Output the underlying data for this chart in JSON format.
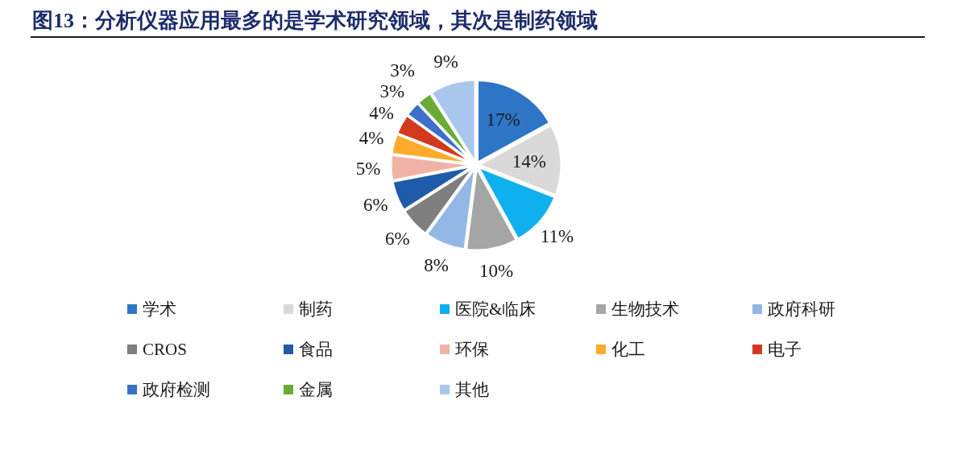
{
  "chart_data": {
    "type": "pie",
    "title": "图13：分析仪器应用最多的是学术研究领域，其次是制药领域",
    "categories": [
      "学术",
      "制药",
      "医院&临床",
      "生物技术",
      "政府科研",
      "CROS",
      "食品",
      "环保",
      "化工",
      "电子",
      "政府检测",
      "金属",
      "其他"
    ],
    "values": [
      17,
      14,
      11,
      10,
      8,
      6,
      6,
      5,
      4,
      4,
      3,
      3,
      9
    ],
    "colors": [
      "#2e75c6",
      "#d9d9d9",
      "#0fb0ef",
      "#a5a5a5",
      "#94b8e6",
      "#7f7f7f",
      "#1f5ba8",
      "#f0b2a4",
      "#fdab2a",
      "#d2391f",
      "#3c70c9",
      "#6aab36",
      "#a9c7ec"
    ],
    "value_labels": [
      "17%",
      "14%",
      "11%",
      "10%",
      "8%",
      "6%",
      "6%",
      "5%",
      "4%",
      "4%",
      "3%",
      "3%",
      "9%"
    ],
    "legend": "bottom"
  }
}
